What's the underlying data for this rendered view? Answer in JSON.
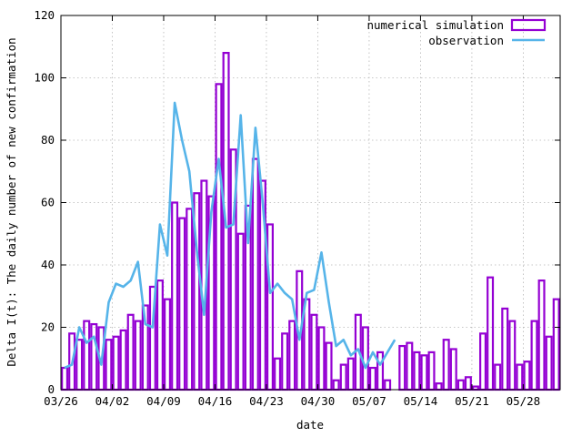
{
  "chart_data": {
    "type": "bar+line",
    "xlabel": "date",
    "ylabel": "Delta I(t): The daily number of new confirmation",
    "ylim": [
      0,
      120
    ],
    "yticks": [
      0,
      20,
      40,
      60,
      80,
      100,
      120
    ],
    "x_start": "03/26",
    "x_tick_labels": [
      "03/26",
      "04/02",
      "04/09",
      "04/16",
      "04/23",
      "04/30",
      "05/07",
      "05/14",
      "05/21",
      "05/28"
    ],
    "grid": true,
    "legend_position": "top-right",
    "series": [
      {
        "name": "numerical simulation",
        "kind": "bar",
        "color": "#9400d3",
        "values": [
          7,
          18,
          16,
          22,
          21,
          20,
          16,
          17,
          19,
          24,
          22,
          27,
          33,
          35,
          29,
          60,
          55,
          58,
          63,
          67,
          62,
          98,
          108,
          77,
          50,
          59,
          74,
          67,
          53,
          10,
          18,
          22,
          38,
          29,
          24,
          20,
          15,
          3,
          8,
          10,
          24,
          20,
          7,
          12,
          3,
          0,
          14,
          15,
          12,
          11,
          12,
          2,
          16,
          13,
          3,
          4,
          1,
          18,
          36,
          8,
          26,
          22,
          8,
          9,
          22,
          35,
          17,
          29
        ]
      },
      {
        "name": "observation",
        "kind": "line",
        "color": "#56b4e9",
        "values": [
          7,
          8,
          20,
          15,
          17,
          8,
          28,
          34,
          33,
          35,
          41,
          21,
          20,
          53,
          43,
          92,
          80,
          70,
          45,
          24,
          57,
          74,
          52,
          53,
          88,
          47,
          84,
          60,
          31,
          34,
          31,
          29,
          16,
          31,
          32,
          44,
          28,
          14,
          16,
          11,
          13,
          7,
          12,
          8,
          12,
          16
        ]
      }
    ]
  }
}
